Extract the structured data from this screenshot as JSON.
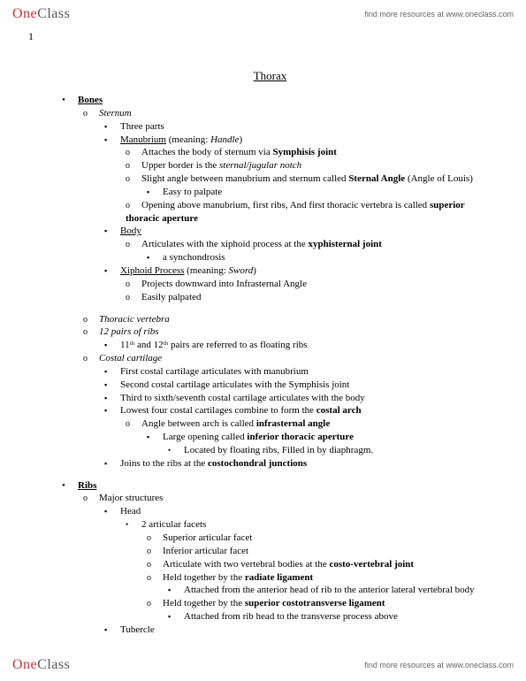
{
  "header": {
    "logo_one": "One",
    "logo_class": "Class",
    "resources": "find more resources at www.oneclass.com"
  },
  "page_number": "1",
  "title": "Thorax",
  "s_bones": "Bones",
  "s_ribs": "Ribs",
  "sternum": "Sternum",
  "three_parts": "Three parts",
  "manubrium": "Manubrium",
  "manubrium_meaning": " (meaning: ",
  "handle": "Handle",
  "m1": "Attaches the body of sternum via ",
  "symphisis": "Symphisis joint",
  "m2a": "Upper border is the ",
  "m2b": "sternal/jugular notch",
  "m3a": "Slight angle between manubrium and sternum called ",
  "m3b": "Sternal Angle",
  "m3c": " (Angle of Louis)",
  "m3d": "Easy to palpate",
  "m4a": "Opening above manubrium, first ribs, And first thoracic vertebra is called ",
  "m4b": "superior thoracic aperture",
  "body": "Body",
  "b1a": "Articulates with the xiphoid process at the ",
  "b1b": "xyphisternal joint",
  "b1c": "a synchondrosis",
  "xiphoid": "Xiphoid Process",
  "xiphoid_meaning": " (meaning: ",
  "sword": "Sword",
  "x1": "Projects downward into Infrasternal Angle",
  "x2": "Easily palpated",
  "tv": "Thoracic vertebra",
  "pairs12": "12 pairs of ribs",
  "p1": "11ᵗʰ and 12ᵗʰ pairs are referred to as floating ribs",
  "cc": "Costal cartilage",
  "cc1": "First costal cartilage articulates with manubrium",
  "cc2": "Second costal cartilage articulates with the Symphisis joint",
  "cc3": "Third to sixth/seventh costal cartilage articulates with the body",
  "cc4a": "Lowest four costal cartilages combine to form the ",
  "cc4b": "costal arch",
  "cc5a": "Angle between arch is called ",
  "cc5b": "infrasternal angle",
  "cc6a": "Large opening called ",
  "cc6b": "inferior thoracic aperture",
  "cc7": "Located by floating ribs, Filled in by diaphragm.",
  "cc8a": "Joins to the ribs at the ",
  "cc8b": "costochondral junctions",
  "ms": "Major structures",
  "head": "Head",
  "h1": "2 articular facets",
  "h2": "Superior articular facet",
  "h3": "Inferior articular facet",
  "h4a": "Articulate with two vertebral bodies at the ",
  "h4b": "costo-vertebral joint",
  "h5a": "Held together by the ",
  "h5b": "radiate ligament",
  "h6": "Attached from the anterior head of rib to the anterior lateral vertebral body",
  "h7a": "Held together by the ",
  "h7b": "superior costotransverse ligament",
  "h8": "Attached from rib head to the transverse process above",
  "tubercle": "Tubercle",
  "close_paren": ")"
}
